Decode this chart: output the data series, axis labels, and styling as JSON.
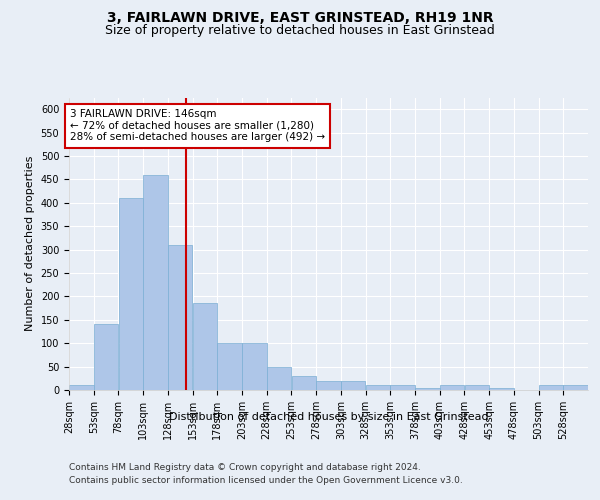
{
  "title": "3, FAIRLAWN DRIVE, EAST GRINSTEAD, RH19 1NR",
  "subtitle": "Size of property relative to detached houses in East Grinstead",
  "xlabel": "Distribution of detached houses by size in East Grinstead",
  "ylabel": "Number of detached properties",
  "bar_color": "#aec6e8",
  "bar_edge_color": "#7bafd4",
  "reference_line_x": 146,
  "bin_starts": [
    28,
    53,
    78,
    103,
    128,
    153,
    178,
    203,
    228,
    253,
    278,
    303,
    328,
    353,
    378,
    403,
    428,
    453,
    478,
    503,
    528
  ],
  "bar_heights": [
    10,
    140,
    410,
    460,
    310,
    185,
    100,
    100,
    50,
    30,
    20,
    20,
    10,
    10,
    5,
    10,
    10,
    5,
    0,
    10,
    10
  ],
  "annotation_line1": "3 FAIRLAWN DRIVE: 146sqm",
  "annotation_line2": "← 72% of detached houses are smaller (1,280)",
  "annotation_line3": "28% of semi-detached houses are larger (492) →",
  "annotation_box_color": "#ffffff",
  "annotation_box_edge_color": "#cc0000",
  "footer_line1": "Contains HM Land Registry data © Crown copyright and database right 2024.",
  "footer_line2": "Contains public sector information licensed under the Open Government Licence v3.0.",
  "ylim": [
    0,
    625
  ],
  "yticks": [
    0,
    50,
    100,
    150,
    200,
    250,
    300,
    350,
    400,
    450,
    500,
    550,
    600
  ],
  "background_color": "#e8eef6",
  "grid_color": "#ffffff",
  "title_fontsize": 10,
  "subtitle_fontsize": 9,
  "tick_fontsize": 7,
  "ylabel_fontsize": 8,
  "xlabel_fontsize": 8,
  "annotation_fontsize": 7.5,
  "footer_fontsize": 6.5
}
